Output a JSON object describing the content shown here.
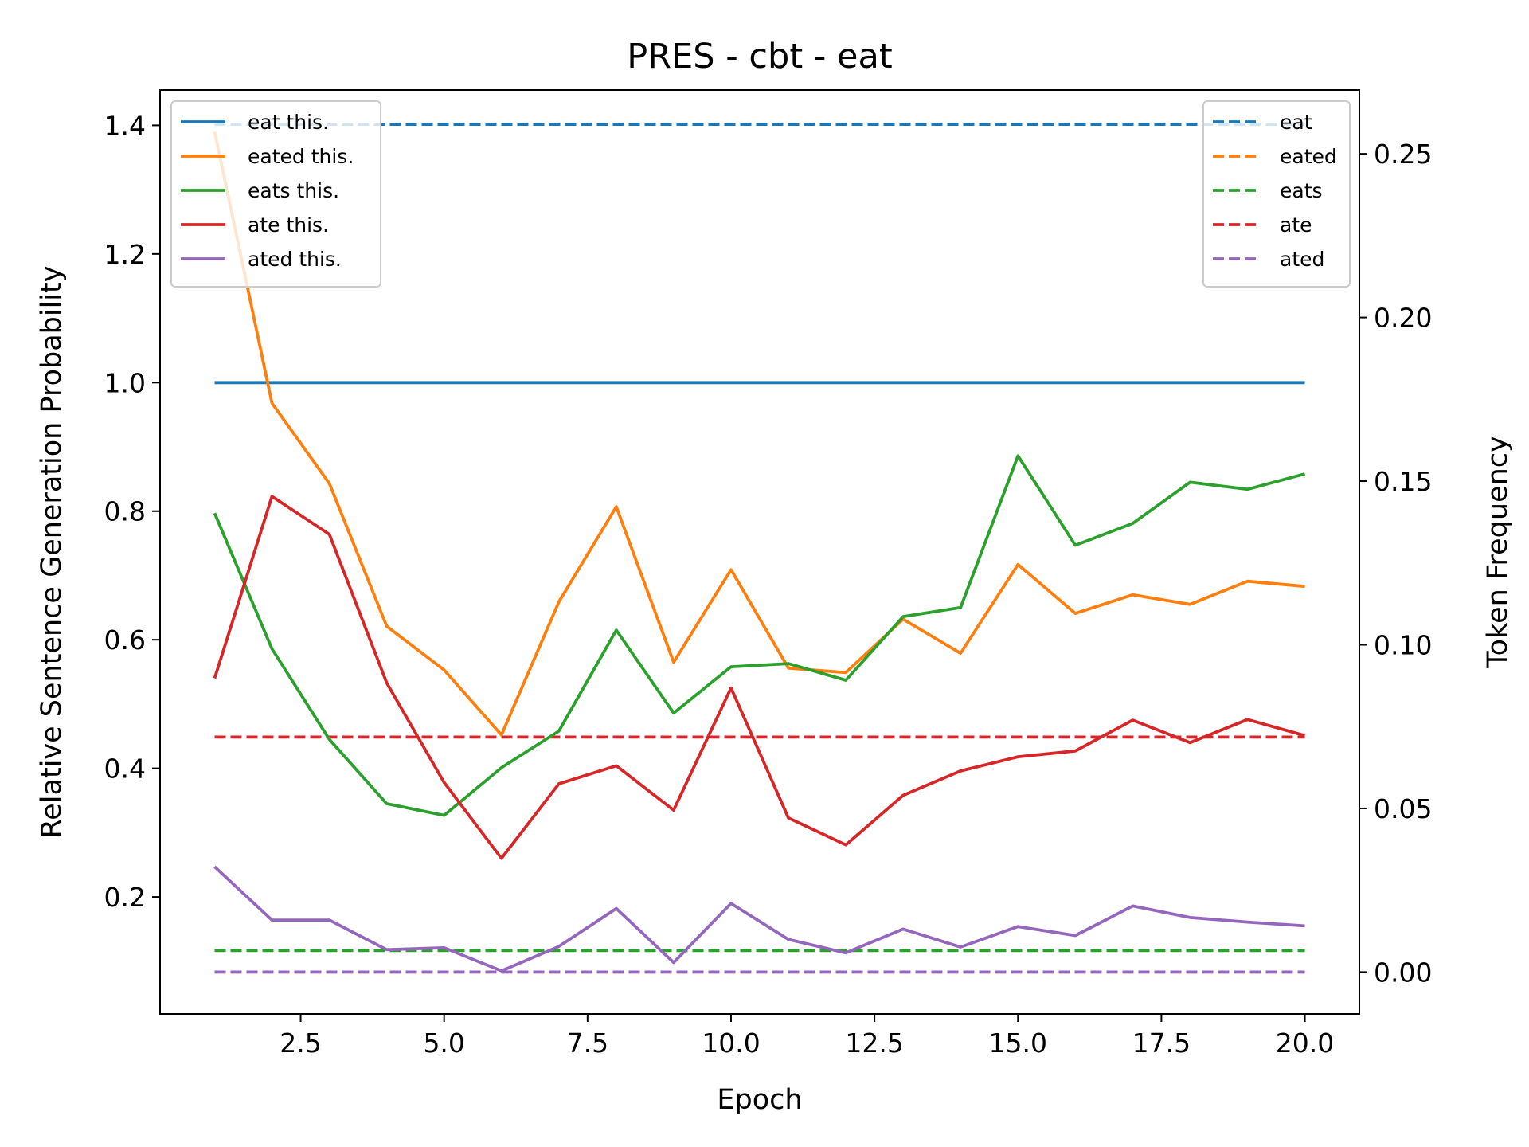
{
  "chart_data": {
    "type": "line",
    "title": "PRES - cbt - eat",
    "xlabel": "Epoch",
    "ylabel": "Relative Sentence Generation Probability",
    "y2label": "Token Frequency",
    "grid": false,
    "xlim": [
      0.05,
      20.95
    ],
    "ylim": [
      0.018,
      1.455
    ],
    "y2lim": [
      -0.0128,
      0.2695
    ],
    "x_ticks": [
      2.5,
      5.0,
      7.5,
      10.0,
      12.5,
      15.0,
      17.5,
      20.0
    ],
    "x_tick_labels": [
      "2.5",
      "5.0",
      "7.5",
      "10.0",
      "12.5",
      "15.0",
      "17.5",
      "20.0"
    ],
    "y_ticks": [
      0.2,
      0.4,
      0.6,
      0.8,
      1.0,
      1.2,
      1.4
    ],
    "y_tick_labels": [
      "0.2",
      "0.4",
      "0.6",
      "0.8",
      "1.0",
      "1.2",
      "1.4"
    ],
    "y2_ticks": [
      0.0,
      0.05,
      0.1,
      0.15,
      0.2,
      0.25
    ],
    "y2_tick_labels": [
      "0.00",
      "0.05",
      "0.10",
      "0.15",
      "0.20",
      "0.25"
    ],
    "legend_left_placement": "upper left",
    "legend_right_placement": "upper right",
    "x": [
      1,
      2,
      3,
      4,
      5,
      6,
      7,
      8,
      9,
      10,
      11,
      12,
      13,
      14,
      15,
      16,
      17,
      18,
      19,
      20
    ],
    "series": [
      {
        "name": "eat this.",
        "axis": "left",
        "style": "solid",
        "color": "#1f77b4",
        "values": [
          1.0,
          1.0,
          1.0,
          1.0,
          1.0,
          1.0,
          1.0,
          1.0,
          1.0,
          1.0,
          1.0,
          1.0,
          1.0,
          1.0,
          1.0,
          1.0,
          1.0,
          1.0,
          1.0,
          1.0
        ]
      },
      {
        "name": "eated this.",
        "axis": "left",
        "style": "solid",
        "color": "#ff7f0e",
        "values": [
          1.39,
          0.968,
          0.843,
          0.621,
          0.553,
          0.452,
          0.659,
          0.807,
          0.565,
          0.709,
          0.556,
          0.549,
          0.632,
          0.579,
          0.717,
          0.641,
          0.67,
          0.655,
          0.691,
          0.683
        ]
      },
      {
        "name": "eats this.",
        "axis": "left",
        "style": "solid",
        "color": "#2ca02c",
        "values": [
          0.797,
          0.586,
          0.445,
          0.345,
          0.327,
          0.401,
          0.458,
          0.615,
          0.486,
          0.558,
          0.563,
          0.537,
          0.636,
          0.65,
          0.886,
          0.747,
          0.781,
          0.845,
          0.834,
          0.858
        ]
      },
      {
        "name": "ate this.",
        "axis": "left",
        "style": "solid",
        "color": "#d62728",
        "values": [
          0.54,
          0.823,
          0.764,
          0.533,
          0.378,
          0.26,
          0.376,
          0.404,
          0.335,
          0.525,
          0.323,
          0.281,
          0.358,
          0.396,
          0.418,
          0.427,
          0.475,
          0.44,
          0.476,
          0.451
        ]
      },
      {
        "name": "ated this.",
        "axis": "left",
        "style": "solid",
        "color": "#9467bd",
        "values": [
          0.247,
          0.164,
          0.164,
          0.118,
          0.121,
          0.085,
          0.123,
          0.182,
          0.098,
          0.19,
          0.134,
          0.113,
          0.15,
          0.122,
          0.154,
          0.14,
          0.186,
          0.168,
          0.161,
          0.155
        ]
      },
      {
        "name": "eat",
        "axis": "right",
        "style": "dashed",
        "color": "#1f77b4",
        "values": [
          0.259,
          0.259,
          0.259,
          0.259,
          0.259,
          0.259,
          0.259,
          0.259,
          0.259,
          0.259,
          0.259,
          0.259,
          0.259,
          0.259,
          0.259,
          0.259,
          0.259,
          0.259,
          0.259,
          0.259
        ]
      },
      {
        "name": "eated",
        "axis": "right",
        "style": "dashed",
        "color": "#ff7f0e",
        "values": [
          0.0,
          0.0,
          0.0,
          0.0,
          0.0,
          0.0,
          0.0,
          0.0,
          0.0,
          0.0,
          0.0,
          0.0,
          0.0,
          0.0,
          0.0,
          0.0,
          0.0,
          0.0,
          0.0,
          0.0
        ]
      },
      {
        "name": "eats",
        "axis": "right",
        "style": "dashed",
        "color": "#2ca02c",
        "values": [
          0.0066,
          0.0066,
          0.0066,
          0.0066,
          0.0066,
          0.0066,
          0.0066,
          0.0066,
          0.0066,
          0.0066,
          0.0066,
          0.0066,
          0.0066,
          0.0066,
          0.0066,
          0.0066,
          0.0066,
          0.0066,
          0.0066,
          0.0066
        ]
      },
      {
        "name": "ate",
        "axis": "right",
        "style": "dashed",
        "color": "#d62728",
        "values": [
          0.0718,
          0.0718,
          0.0718,
          0.0718,
          0.0718,
          0.0718,
          0.0718,
          0.0718,
          0.0718,
          0.0718,
          0.0718,
          0.0718,
          0.0718,
          0.0718,
          0.0718,
          0.0718,
          0.0718,
          0.0718,
          0.0718,
          0.0718
        ]
      },
      {
        "name": "ated",
        "axis": "right",
        "style": "dashed",
        "color": "#9467bd",
        "values": [
          0.0,
          0.0,
          0.0,
          0.0,
          0.0,
          0.0,
          0.0,
          0.0,
          0.0,
          0.0,
          0.0,
          0.0,
          0.0,
          0.0,
          0.0,
          0.0,
          0.0,
          0.0,
          0.0,
          0.0
        ]
      }
    ]
  }
}
